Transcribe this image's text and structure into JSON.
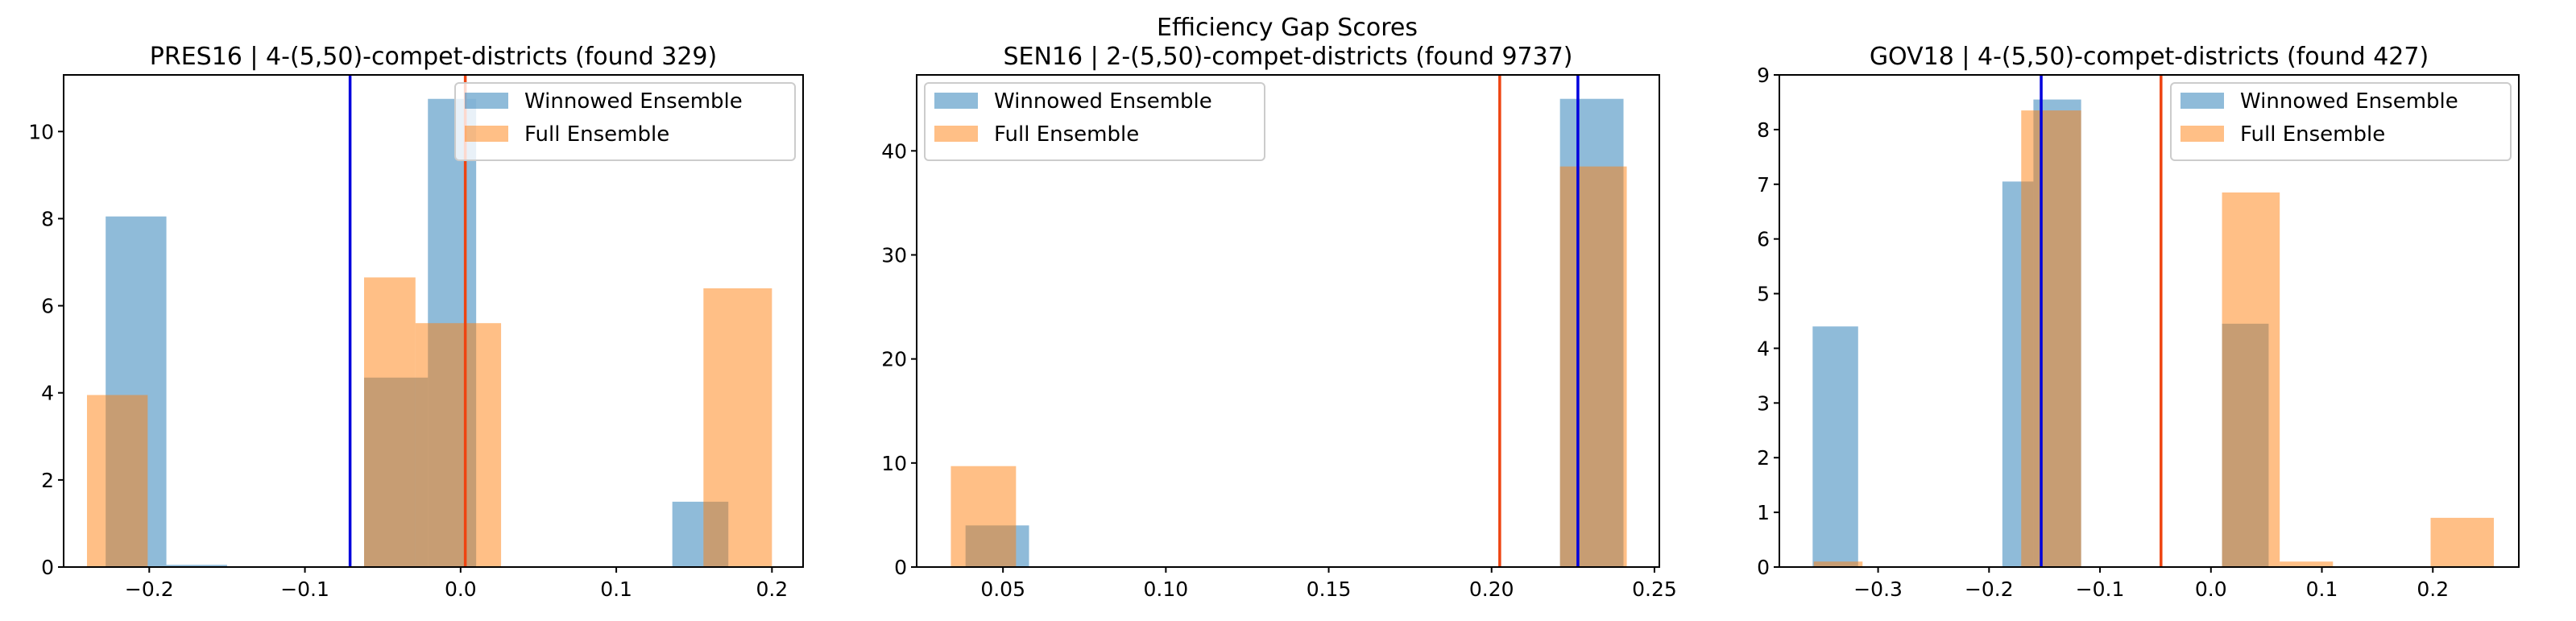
{
  "suptitle": "Efficiency Gap Scores",
  "chart_data": [
    {
      "type": "histogram",
      "title": "PRES16 | 4-(5,50)-compet-districts (found 329)",
      "xlim": [
        -0.255,
        0.22
      ],
      "ylim": [
        0,
        11.3
      ],
      "xticks": [
        -0.2,
        -0.1,
        0.0,
        0.1,
        0.2
      ],
      "xtick_labels": [
        "−0.2",
        "−0.1",
        "0.0",
        "0.1",
        "0.2"
      ],
      "yticks": [
        0,
        2,
        4,
        6,
        8,
        10
      ],
      "ytick_labels": [
        "0",
        "2",
        "4",
        "6",
        "8",
        "10"
      ],
      "legend_position": "upper right",
      "series": [
        {
          "name": "Winnowed Ensemble",
          "color": "#1f77b4",
          "opacity": 0.5,
          "bins": [
            [
              -0.228,
              -0.189,
              8.05
            ],
            [
              -0.189,
              -0.15,
              0.05
            ],
            [
              -0.062,
              -0.021,
              4.35
            ],
            [
              -0.021,
              0.01,
              10.75
            ],
            [
              0.136,
              0.172,
              1.5
            ]
          ]
        },
        {
          "name": "Full Ensemble",
          "color": "#ff7f0e",
          "opacity": 0.5,
          "bins": [
            [
              -0.24,
              -0.201,
              3.95
            ],
            [
              -0.062,
              -0.029,
              6.65
            ],
            [
              -0.029,
              0.026,
              5.6
            ],
            [
              0.156,
              0.2,
              6.4
            ]
          ]
        }
      ],
      "vlines": [
        {
          "x": -0.071,
          "color": "#0000dd"
        },
        {
          "x": 0.003,
          "color": "#ee4411"
        }
      ]
    },
    {
      "type": "histogram",
      "title": "SEN16 | 2-(5,50)-compet-districts (found 9737)",
      "xlim": [
        0.0235,
        0.2515
      ],
      "ylim": [
        0,
        47.3
      ],
      "xticks": [
        0.05,
        0.1,
        0.15,
        0.2,
        0.25
      ],
      "xtick_labels": [
        "0.05",
        "0.10",
        "0.15",
        "0.20",
        "0.25"
      ],
      "yticks": [
        0,
        10,
        20,
        30,
        40
      ],
      "ytick_labels": [
        "0",
        "10",
        "20",
        "30",
        "40"
      ],
      "legend_position": "upper left",
      "series": [
        {
          "name": "Winnowed Ensemble",
          "color": "#1f77b4",
          "opacity": 0.5,
          "bins": [
            [
              0.0385,
              0.058,
              4.0
            ],
            [
              0.221,
              0.2405,
              45.0
            ]
          ]
        },
        {
          "name": "Full Ensemble",
          "color": "#ff7f0e",
          "opacity": 0.5,
          "bins": [
            [
              0.034,
              0.054,
              9.7
            ],
            [
              0.221,
              0.2415,
              38.5
            ]
          ]
        }
      ],
      "vlines": [
        {
          "x": 0.2025,
          "color": "#ee4411"
        },
        {
          "x": 0.2265,
          "color": "#0000dd"
        }
      ]
    },
    {
      "type": "histogram",
      "title": "GOV18 | 4-(5,50)-compet-districts (found 427)",
      "xlim": [
        -0.389,
        0.2775
      ],
      "ylim": [
        0,
        9.0
      ],
      "xticks": [
        -0.3,
        -0.2,
        -0.1,
        0.0,
        0.1,
        0.2
      ],
      "xtick_labels": [
        "−0.3",
        "−0.2",
        "−0.1",
        "0.0",
        "0.1",
        "0.2"
      ],
      "yticks": [
        0,
        1,
        2,
        3,
        4,
        5,
        6,
        7,
        8,
        9
      ],
      "ytick_labels": [
        "0",
        "1",
        "2",
        "3",
        "4",
        "5",
        "6",
        "7",
        "8",
        "9"
      ],
      "legend_position": "upper right",
      "series": [
        {
          "name": "Winnowed Ensemble",
          "color": "#1f77b4",
          "opacity": 0.5,
          "bins": [
            [
              -0.359,
              -0.318,
              4.4
            ],
            [
              -0.188,
              -0.16,
              7.05
            ],
            [
              -0.16,
              -0.117,
              8.55
            ],
            [
              0.01,
              0.052,
              4.45
            ]
          ]
        },
        {
          "name": "Full Ensemble",
          "color": "#ff7f0e",
          "opacity": 0.5,
          "bins": [
            [
              -0.358,
              -0.314,
              0.1
            ],
            [
              -0.171,
              -0.117,
              8.35
            ],
            [
              0.01,
              0.062,
              6.85
            ],
            [
              0.062,
              0.11,
              0.1
            ],
            [
              0.198,
              0.255,
              0.9
            ]
          ]
        }
      ],
      "vlines": [
        {
          "x": -0.153,
          "color": "#0000dd"
        },
        {
          "x": -0.045,
          "color": "#ee4411"
        }
      ]
    }
  ]
}
